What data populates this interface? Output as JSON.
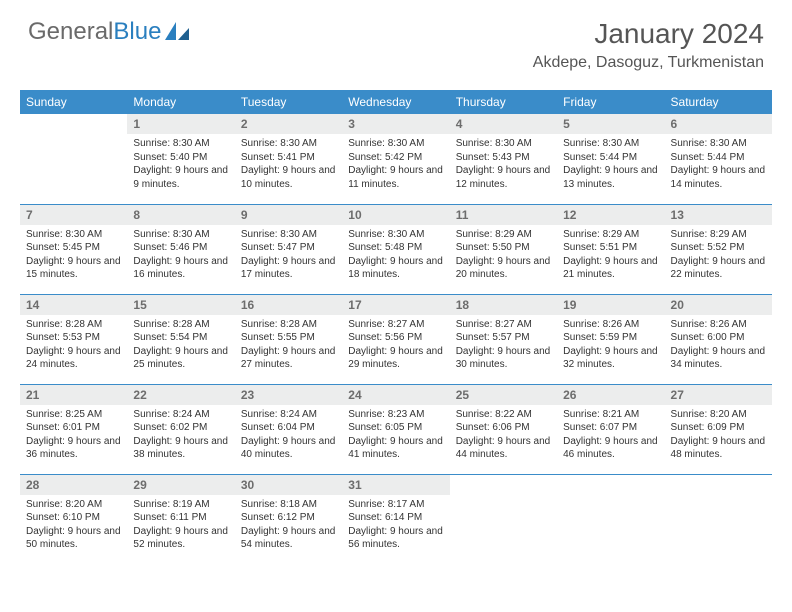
{
  "brand": {
    "part1": "General",
    "part2": "Blue"
  },
  "title": "January 2024",
  "location": "Akdepe, Dasoguz, Turkmenistan",
  "colors": {
    "header_bg": "#3a8cc9",
    "header_text": "#ffffff",
    "daynum_bg": "#eceded",
    "daynum_text": "#6d6d6d",
    "body_text": "#333333",
    "row_border": "#3a8cc9",
    "brand_gray": "#6a6a6a",
    "brand_blue": "#2a7fbf",
    "page_bg": "#ffffff"
  },
  "typography": {
    "month_title_fontsize": 28,
    "location_fontsize": 16,
    "dayname_fontsize": 12,
    "daynum_fontsize": 12,
    "cell_fontsize": 10
  },
  "day_names": [
    "Sunday",
    "Monday",
    "Tuesday",
    "Wednesday",
    "Thursday",
    "Friday",
    "Saturday"
  ],
  "weeks": [
    [
      null,
      {
        "n": "1",
        "sunrise": "8:30 AM",
        "sunset": "5:40 PM",
        "daylight": "9 hours and 9 minutes."
      },
      {
        "n": "2",
        "sunrise": "8:30 AM",
        "sunset": "5:41 PM",
        "daylight": "9 hours and 10 minutes."
      },
      {
        "n": "3",
        "sunrise": "8:30 AM",
        "sunset": "5:42 PM",
        "daylight": "9 hours and 11 minutes."
      },
      {
        "n": "4",
        "sunrise": "8:30 AM",
        "sunset": "5:43 PM",
        "daylight": "9 hours and 12 minutes."
      },
      {
        "n": "5",
        "sunrise": "8:30 AM",
        "sunset": "5:44 PM",
        "daylight": "9 hours and 13 minutes."
      },
      {
        "n": "6",
        "sunrise": "8:30 AM",
        "sunset": "5:44 PM",
        "daylight": "9 hours and 14 minutes."
      }
    ],
    [
      {
        "n": "7",
        "sunrise": "8:30 AM",
        "sunset": "5:45 PM",
        "daylight": "9 hours and 15 minutes."
      },
      {
        "n": "8",
        "sunrise": "8:30 AM",
        "sunset": "5:46 PM",
        "daylight": "9 hours and 16 minutes."
      },
      {
        "n": "9",
        "sunrise": "8:30 AM",
        "sunset": "5:47 PM",
        "daylight": "9 hours and 17 minutes."
      },
      {
        "n": "10",
        "sunrise": "8:30 AM",
        "sunset": "5:48 PM",
        "daylight": "9 hours and 18 minutes."
      },
      {
        "n": "11",
        "sunrise": "8:29 AM",
        "sunset": "5:50 PM",
        "daylight": "9 hours and 20 minutes."
      },
      {
        "n": "12",
        "sunrise": "8:29 AM",
        "sunset": "5:51 PM",
        "daylight": "9 hours and 21 minutes."
      },
      {
        "n": "13",
        "sunrise": "8:29 AM",
        "sunset": "5:52 PM",
        "daylight": "9 hours and 22 minutes."
      }
    ],
    [
      {
        "n": "14",
        "sunrise": "8:28 AM",
        "sunset": "5:53 PM",
        "daylight": "9 hours and 24 minutes."
      },
      {
        "n": "15",
        "sunrise": "8:28 AM",
        "sunset": "5:54 PM",
        "daylight": "9 hours and 25 minutes."
      },
      {
        "n": "16",
        "sunrise": "8:28 AM",
        "sunset": "5:55 PM",
        "daylight": "9 hours and 27 minutes."
      },
      {
        "n": "17",
        "sunrise": "8:27 AM",
        "sunset": "5:56 PM",
        "daylight": "9 hours and 29 minutes."
      },
      {
        "n": "18",
        "sunrise": "8:27 AM",
        "sunset": "5:57 PM",
        "daylight": "9 hours and 30 minutes."
      },
      {
        "n": "19",
        "sunrise": "8:26 AM",
        "sunset": "5:59 PM",
        "daylight": "9 hours and 32 minutes."
      },
      {
        "n": "20",
        "sunrise": "8:26 AM",
        "sunset": "6:00 PM",
        "daylight": "9 hours and 34 minutes."
      }
    ],
    [
      {
        "n": "21",
        "sunrise": "8:25 AM",
        "sunset": "6:01 PM",
        "daylight": "9 hours and 36 minutes."
      },
      {
        "n": "22",
        "sunrise": "8:24 AM",
        "sunset": "6:02 PM",
        "daylight": "9 hours and 38 minutes."
      },
      {
        "n": "23",
        "sunrise": "8:24 AM",
        "sunset": "6:04 PM",
        "daylight": "9 hours and 40 minutes."
      },
      {
        "n": "24",
        "sunrise": "8:23 AM",
        "sunset": "6:05 PM",
        "daylight": "9 hours and 41 minutes."
      },
      {
        "n": "25",
        "sunrise": "8:22 AM",
        "sunset": "6:06 PM",
        "daylight": "9 hours and 44 minutes."
      },
      {
        "n": "26",
        "sunrise": "8:21 AM",
        "sunset": "6:07 PM",
        "daylight": "9 hours and 46 minutes."
      },
      {
        "n": "27",
        "sunrise": "8:20 AM",
        "sunset": "6:09 PM",
        "daylight": "9 hours and 48 minutes."
      }
    ],
    [
      {
        "n": "28",
        "sunrise": "8:20 AM",
        "sunset": "6:10 PM",
        "daylight": "9 hours and 50 minutes."
      },
      {
        "n": "29",
        "sunrise": "8:19 AM",
        "sunset": "6:11 PM",
        "daylight": "9 hours and 52 minutes."
      },
      {
        "n": "30",
        "sunrise": "8:18 AM",
        "sunset": "6:12 PM",
        "daylight": "9 hours and 54 minutes."
      },
      {
        "n": "31",
        "sunrise": "8:17 AM",
        "sunset": "6:14 PM",
        "daylight": "9 hours and 56 minutes."
      },
      null,
      null,
      null
    ]
  ],
  "labels": {
    "sunrise": "Sunrise:",
    "sunset": "Sunset:",
    "daylight": "Daylight:"
  }
}
